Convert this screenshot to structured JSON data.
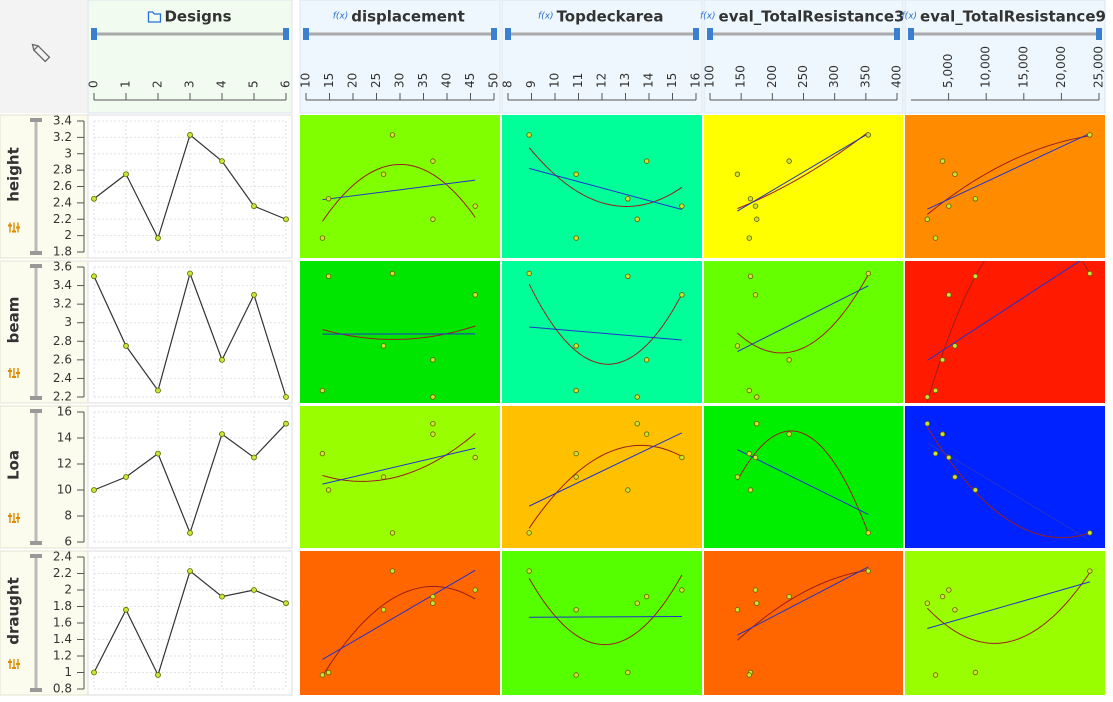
{
  "columns": [
    {
      "name": "Designs",
      "lim": [
        0,
        6
      ],
      "ticks": [
        0,
        1,
        2,
        3,
        4,
        5,
        6
      ]
    },
    {
      "name": "displacement",
      "icon": "f(x)",
      "lim": [
        10,
        50
      ],
      "ticks": [
        10,
        15,
        20,
        25,
        30,
        35,
        40,
        45,
        50
      ],
      "values": [
        14.8,
        26.5,
        13.5,
        28.4,
        37,
        46,
        37
      ]
    },
    {
      "name": "Topdeckarea",
      "icon": "f(x)",
      "lim": [
        8,
        16
      ],
      "ticks": [
        8,
        9,
        10,
        11,
        12,
        13,
        14,
        15,
        16
      ],
      "values": [
        13.1,
        10.9,
        10.9,
        8.9,
        13.9,
        15.4,
        13.5
      ]
    },
    {
      "name": "eval_TotalResistance3",
      "icon": "f(x)",
      "lim": [
        100,
        400
      ],
      "ticks": [
        100,
        150,
        200,
        250,
        300,
        350,
        400
      ],
      "values": [
        165,
        144,
        163,
        354,
        227,
        173,
        175
      ]
    },
    {
      "name": "eval_TotalResistance9",
      "icon": "f(x)",
      "lim": [
        0,
        25000
      ],
      "ticks": [
        {
          "value": 5000,
          "label": "5,000"
        },
        {
          "value": 10000,
          "label": "10,000"
        },
        {
          "value": 15000,
          "label": "15,000"
        },
        {
          "value": 20000,
          "label": "20,000"
        },
        {
          "value": 25000,
          "label": "25,000"
        }
      ],
      "values": [
        8560,
        5840,
        3260,
        23780,
        4200,
        5030,
        2170
      ]
    }
  ],
  "rows": [
    {
      "name": "height",
      "lim": [
        1.8,
        3.4
      ],
      "ticks": [
        1.8,
        2,
        2.2,
        2.4,
        2.6,
        2.8,
        3,
        3.2,
        3.4
      ],
      "values": [
        2.45,
        2.75,
        1.97,
        3.23,
        2.91,
        2.36,
        2.2
      ],
      "colors": [
        "#80ff00",
        "#00ff99",
        "#ffff00",
        "#ff8c00"
      ]
    },
    {
      "name": "beam",
      "lim": [
        2.2,
        3.6
      ],
      "ticks": [
        2.2,
        2.4,
        2.6,
        2.8,
        3,
        3.2,
        3.4,
        3.6
      ],
      "values": [
        3.5,
        2.75,
        2.27,
        3.53,
        2.6,
        3.3,
        2.2
      ],
      "colors": [
        "#00e600",
        "#00ff99",
        "#66ff00",
        "#ff1a00"
      ]
    },
    {
      "name": "Loa",
      "lim": [
        6,
        16
      ],
      "ticks": [
        6,
        8,
        10,
        12,
        14,
        16
      ],
      "values": [
        10,
        11,
        12.8,
        6.7,
        14.3,
        12.5,
        15.1
      ],
      "colors": [
        "#99ff00",
        "#ffc000",
        "#00ee00",
        "#0022ff"
      ]
    },
    {
      "name": "draught",
      "lim": [
        0.8,
        2.4
      ],
      "ticks": [
        0.8,
        1,
        1.2,
        1.4,
        1.6,
        1.8,
        2,
        2.2,
        2.4
      ],
      "values": [
        1.0,
        1.76,
        0.97,
        2.23,
        1.92,
        2.0,
        1.84
      ],
      "colors": [
        "#ff6600",
        "#55ff00",
        "#ff6600",
        "#99ff00"
      ]
    }
  ]
}
